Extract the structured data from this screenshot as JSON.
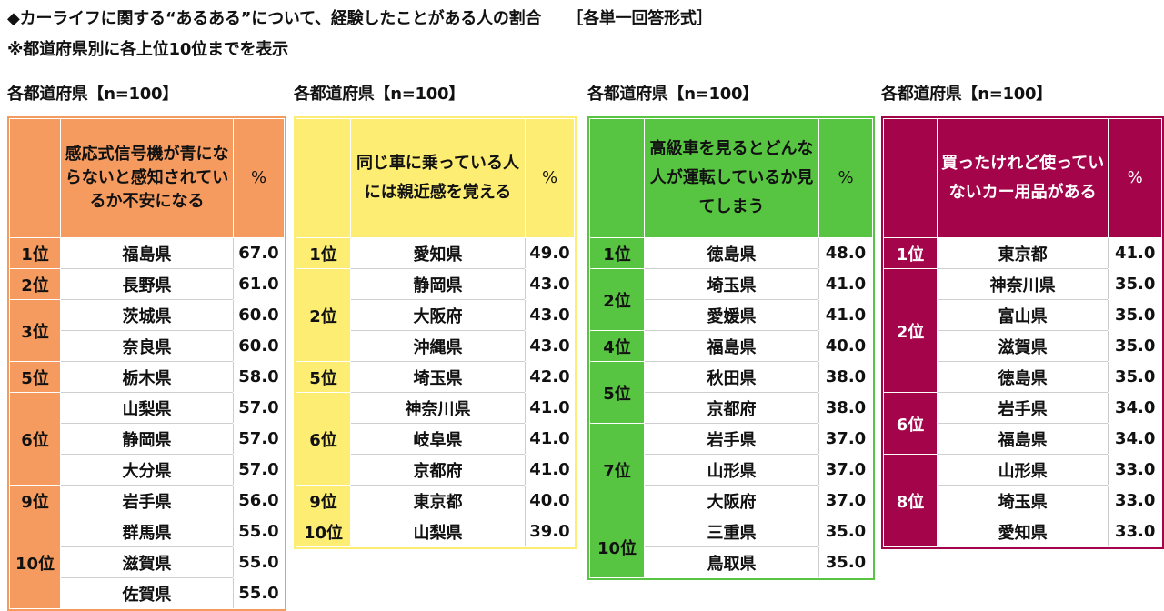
{
  "title": "◆カーライフに関する“あるある”について、経験したことがある人の割合",
  "format_note": "［各単一回答形式］",
  "subtitle": "※都道府県別に各上位10位までを表示",
  "colors": {
    "panel1": "#f59b5f",
    "panel2": "#fdee73",
    "panel3": "#58c542",
    "panel4": "#a3044a"
  },
  "chart_data": [
    {
      "type": "table",
      "label": "各都道府県【n=100】",
      "question": "感応式信号機が青にならないと感知されているか不安になる",
      "unit": "%",
      "groups": [
        {
          "rank": "1位",
          "rows": [
            {
              "name": "福島県",
              "value": "67.0"
            }
          ]
        },
        {
          "rank": "2位",
          "rows": [
            {
              "name": "長野県",
              "value": "61.0"
            }
          ]
        },
        {
          "rank": "3位",
          "rows": [
            {
              "name": "茨城県",
              "value": "60.0"
            },
            {
              "name": "奈良県",
              "value": "60.0"
            }
          ]
        },
        {
          "rank": "5位",
          "rows": [
            {
              "name": "栃木県",
              "value": "58.0"
            }
          ]
        },
        {
          "rank": "6位",
          "rows": [
            {
              "name": "山梨県",
              "value": "57.0"
            },
            {
              "name": "静岡県",
              "value": "57.0"
            },
            {
              "name": "大分県",
              "value": "57.0"
            }
          ]
        },
        {
          "rank": "9位",
          "rows": [
            {
              "name": "岩手県",
              "value": "56.0"
            }
          ]
        },
        {
          "rank": "10位",
          "rows": [
            {
              "name": "群馬県",
              "value": "55.0"
            },
            {
              "name": "滋賀県",
              "value": "55.0"
            },
            {
              "name": "佐賀県",
              "value": "55.0"
            }
          ]
        }
      ]
    },
    {
      "type": "table",
      "label": "各都道府県【n=100】",
      "question": "同じ車に乗っている人には親近感を覚える",
      "unit": "%",
      "groups": [
        {
          "rank": "1位",
          "rows": [
            {
              "name": "愛知県",
              "value": "49.0"
            }
          ]
        },
        {
          "rank": "2位",
          "rows": [
            {
              "name": "静岡県",
              "value": "43.0"
            },
            {
              "name": "大阪府",
              "value": "43.0"
            },
            {
              "name": "沖縄県",
              "value": "43.0"
            }
          ]
        },
        {
          "rank": "5位",
          "rows": [
            {
              "name": "埼玉県",
              "value": "42.0"
            }
          ]
        },
        {
          "rank": "6位",
          "rows": [
            {
              "name": "神奈川県",
              "value": "41.0"
            },
            {
              "name": "岐阜県",
              "value": "41.0"
            },
            {
              "name": "京都府",
              "value": "41.0"
            }
          ]
        },
        {
          "rank": "9位",
          "rows": [
            {
              "name": "東京都",
              "value": "40.0"
            }
          ]
        },
        {
          "rank": "10位",
          "rows": [
            {
              "name": "山梨県",
              "value": "39.0"
            }
          ]
        }
      ]
    },
    {
      "type": "table",
      "label": "各都道府県【n=100】",
      "question": "高級車を見るとどんな人が運転しているか見てしまう",
      "unit": "%",
      "groups": [
        {
          "rank": "1位",
          "rows": [
            {
              "name": "徳島県",
              "value": "48.0"
            }
          ]
        },
        {
          "rank": "2位",
          "rows": [
            {
              "name": "埼玉県",
              "value": "41.0"
            },
            {
              "name": "愛媛県",
              "value": "41.0"
            }
          ]
        },
        {
          "rank": "4位",
          "rows": [
            {
              "name": "福島県",
              "value": "40.0"
            }
          ]
        },
        {
          "rank": "5位",
          "rows": [
            {
              "name": "秋田県",
              "value": "38.0"
            },
            {
              "name": "京都府",
              "value": "38.0"
            }
          ]
        },
        {
          "rank": "7位",
          "rows": [
            {
              "name": "岩手県",
              "value": "37.0"
            },
            {
              "name": "山形県",
              "value": "37.0"
            },
            {
              "name": "大阪府",
              "value": "37.0"
            }
          ]
        },
        {
          "rank": "10位",
          "rows": [
            {
              "name": "三重県",
              "value": "35.0"
            },
            {
              "name": "鳥取県",
              "value": "35.0"
            }
          ]
        }
      ]
    },
    {
      "type": "table",
      "label": "各都道府県【n=100】",
      "question": "買ったけれど使っていないカー用品がある",
      "unit": "%",
      "groups": [
        {
          "rank": "1位",
          "rows": [
            {
              "name": "東京都",
              "value": "41.0"
            }
          ]
        },
        {
          "rank": "2位",
          "rows": [
            {
              "name": "神奈川県",
              "value": "35.0"
            },
            {
              "name": "富山県",
              "value": "35.0"
            },
            {
              "name": "滋賀県",
              "value": "35.0"
            },
            {
              "name": "徳島県",
              "value": "35.0"
            }
          ]
        },
        {
          "rank": "6位",
          "rows": [
            {
              "name": "岩手県",
              "value": "34.0"
            },
            {
              "name": "福島県",
              "value": "34.0"
            }
          ]
        },
        {
          "rank": "8位",
          "rows": [
            {
              "name": "山形県",
              "value": "33.0"
            },
            {
              "name": "埼玉県",
              "value": "33.0"
            },
            {
              "name": "愛知県",
              "value": "33.0"
            }
          ]
        }
      ]
    }
  ]
}
